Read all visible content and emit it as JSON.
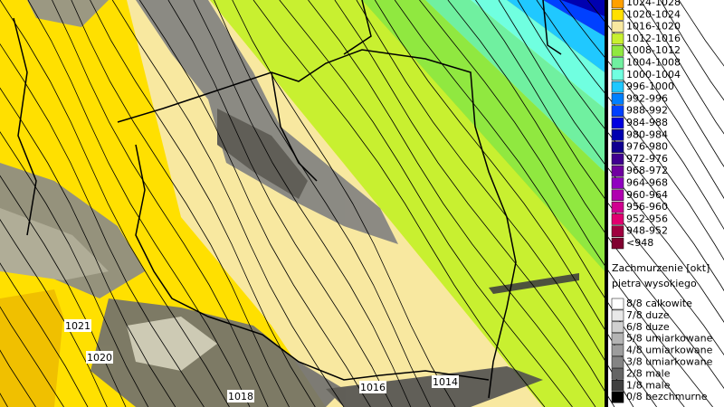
{
  "legend": {
    "pressure": [
      {
        "label": "1024-1028",
        "color": "#ffa000"
      },
      {
        "label": "1020-1024",
        "color": "#ffe000"
      },
      {
        "label": "1016-1020",
        "color": "#f8e8a0"
      },
      {
        "label": "1012-1016",
        "color": "#c8f030"
      },
      {
        "label": "1008-1012",
        "color": "#90e840"
      },
      {
        "label": "1004-1008",
        "color": "#70f0a0"
      },
      {
        "label": "1000-1004",
        "color": "#70ffe0"
      },
      {
        "label": "996-1000",
        "color": "#20c8ff"
      },
      {
        "label": "992-996",
        "color": "#0080ff"
      },
      {
        "label": "988-992",
        "color": "#0040ff"
      },
      {
        "label": "984-988",
        "color": "#0000e0"
      },
      {
        "label": "980-984",
        "color": "#0000b0"
      },
      {
        "label": "976-980",
        "color": "#100090"
      },
      {
        "label": "972-976",
        "color": "#400090"
      },
      {
        "label": "968-972",
        "color": "#7000a0"
      },
      {
        "label": "964-968",
        "color": "#9000c0"
      },
      {
        "label": "960-964",
        "color": "#b000b0"
      },
      {
        "label": "956-960",
        "color": "#d00090"
      },
      {
        "label": "952-956",
        "color": "#e00070"
      },
      {
        "label": "948-952",
        "color": "#a00040"
      },
      {
        "label": "<948",
        "color": "#800030"
      }
    ],
    "cloud": {
      "title": "Zachmurzenie [okt]",
      "subtitle": "pietra wysokiego",
      "items": [
        {
          "label": "8/8 calkowite",
          "color": "#ffffff"
        },
        {
          "label": "7/8 duze",
          "color": "#e8e8e8"
        },
        {
          "label": "6/8 duze",
          "color": "#d0d0d0"
        },
        {
          "label": "5/8 umiarkowane",
          "color": "#b4b4b4"
        },
        {
          "label": "4/8 umiarkowane",
          "color": "#9c9c9c"
        },
        {
          "label": "3/8 umiarkowane",
          "color": "#848484"
        },
        {
          "label": "2/8 male",
          "color": "#646464"
        },
        {
          "label": "1/8 male",
          "color": "#404040"
        },
        {
          "label": "0/8 bezchmurne",
          "color": "#000000"
        }
      ]
    }
  },
  "isobar_labels": [
    "1021",
    "1020",
    "1018",
    "1016",
    "1014"
  ]
}
